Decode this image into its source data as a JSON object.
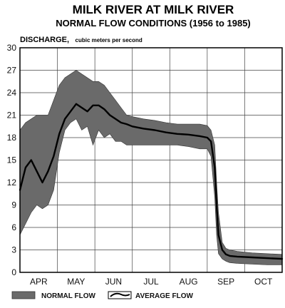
{
  "chart_data": {
    "type": "area",
    "title": "MILK RIVER AT MILK RIVER",
    "subtitle": "NORMAL FLOW CONDITIONS  (1956 to 1985)",
    "ylabel": "DISCHARGE,",
    "ylabel_units": "cubic meters per second",
    "ylim": [
      0,
      30
    ],
    "yticks": [
      "0",
      "3",
      "6",
      "9",
      "12",
      "15",
      "18",
      "21",
      "24",
      "27",
      "30"
    ],
    "x_categories": [
      "APR",
      "MAY",
      "JUN",
      "JUL",
      "AUG",
      "SEP",
      "OCT"
    ],
    "xlim": [
      0,
      7
    ],
    "grid": true,
    "legend_placement": "bottom",
    "band_color": "#6a6a6a",
    "line_color": "#000000",
    "series": [
      {
        "name": "NORMAL FLOW",
        "kind": "band",
        "x": [
          0.0,
          0.15,
          0.3,
          0.45,
          0.6,
          0.75,
          0.9,
          1.05,
          1.2,
          1.35,
          1.5,
          1.65,
          1.8,
          1.95,
          2.1,
          2.25,
          2.4,
          2.55,
          2.7,
          2.85,
          3.0,
          3.3,
          3.6,
          3.9,
          4.2,
          4.5,
          4.8,
          5.0,
          5.1,
          5.2,
          5.25,
          5.3,
          5.4,
          5.5,
          5.6,
          5.8,
          6.2,
          6.6,
          7.0
        ],
        "upper": [
          19.0,
          20.0,
          20.5,
          21.0,
          21.0,
          21.0,
          23.0,
          25.0,
          26.0,
          26.5,
          27.0,
          26.5,
          26.0,
          25.5,
          25.5,
          25.0,
          24.0,
          23.0,
          22.0,
          21.0,
          20.8,
          20.5,
          20.3,
          20.0,
          19.8,
          19.8,
          19.8,
          19.6,
          19.0,
          17.0,
          12.0,
          8.0,
          4.0,
          3.2,
          3.0,
          2.8,
          2.6,
          2.5,
          2.4
        ],
        "lower": [
          5.0,
          6.5,
          8.0,
          9.0,
          8.5,
          9.0,
          11.0,
          16.0,
          19.0,
          20.0,
          20.5,
          19.0,
          19.5,
          17.0,
          19.0,
          18.0,
          18.5,
          17.5,
          17.5,
          17.0,
          17.0,
          17.0,
          17.0,
          17.0,
          17.0,
          16.8,
          16.5,
          16.5,
          15.5,
          10.0,
          5.0,
          2.5,
          1.8,
          1.5,
          1.3,
          1.2,
          1.1,
          1.0,
          1.0
        ]
      },
      {
        "name": "AVERAGE FLOW",
        "kind": "line",
        "x": [
          0.0,
          0.15,
          0.3,
          0.45,
          0.6,
          0.75,
          0.9,
          1.05,
          1.2,
          1.35,
          1.5,
          1.65,
          1.8,
          1.95,
          2.1,
          2.25,
          2.4,
          2.55,
          2.7,
          2.85,
          3.0,
          3.3,
          3.6,
          3.9,
          4.2,
          4.5,
          4.8,
          5.0,
          5.1,
          5.2,
          5.25,
          5.3,
          5.4,
          5.5,
          5.6,
          5.8,
          6.2,
          6.6,
          7.0
        ],
        "values": [
          11.0,
          14.0,
          15.0,
          13.5,
          12.0,
          13.5,
          15.5,
          18.5,
          20.5,
          21.5,
          22.5,
          22.0,
          21.5,
          22.3,
          22.3,
          21.8,
          21.0,
          20.5,
          20.0,
          19.8,
          19.5,
          19.2,
          19.0,
          18.7,
          18.5,
          18.4,
          18.2,
          18.0,
          17.5,
          14.0,
          9.0,
          5.0,
          3.0,
          2.4,
          2.2,
          2.1,
          2.0,
          1.9,
          1.8
        ]
      }
    ]
  }
}
